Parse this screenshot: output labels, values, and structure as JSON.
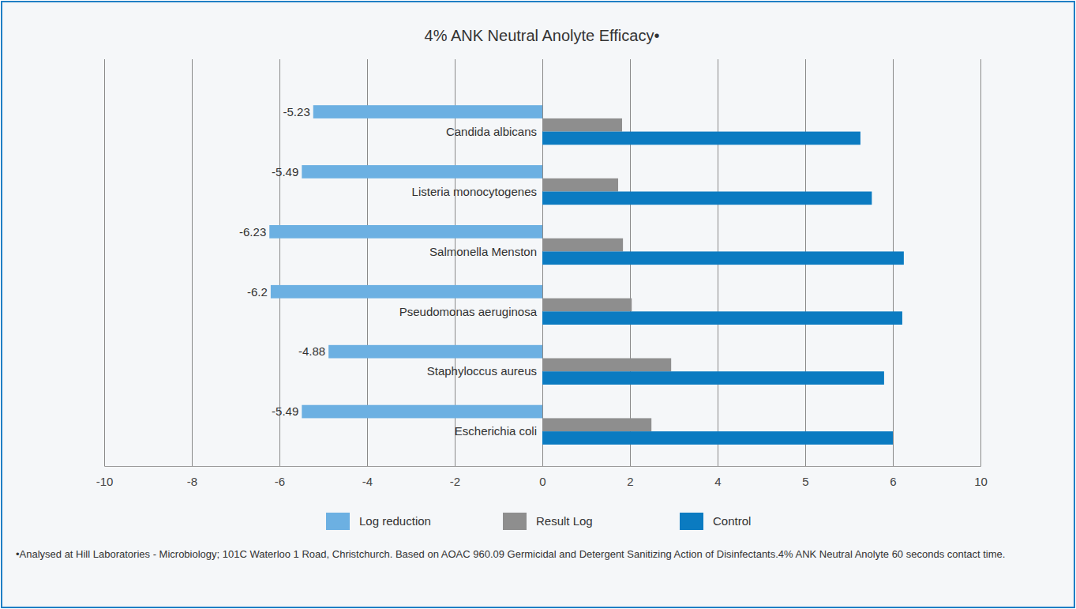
{
  "chart_data": {
    "type": "bar",
    "orientation": "horizontal",
    "title": "4% ANK Neutral Anolyte Efficacy•",
    "categories": [
      "Candida albicans",
      "Listeria monocytogenes",
      "Salmonella Menston",
      "Pseudomonas aeruginosa",
      "Staphyloccus aureus",
      "Escherichia coli"
    ],
    "series": [
      {
        "name": "Log reduction",
        "color": "#6cb0e2",
        "values": [
          -5.23,
          -5.49,
          -6.23,
          -6.2,
          -4.88,
          -5.49
        ],
        "data_labels": true
      },
      {
        "name": "Result Log",
        "color": "#8e8e8e",
        "values": [
          1.82,
          1.73,
          1.84,
          2.04,
          2.94,
          2.49
        ]
      },
      {
        "name": "Control",
        "color": "#0b7bc1",
        "values": [
          5.63,
          5.76,
          6.5,
          6.43,
          5.9,
          6.0
        ]
      }
    ],
    "xlim": [
      -10,
      10
    ],
    "xticks": [
      -10,
      -8,
      -6,
      -4,
      -2,
      0,
      2,
      4,
      5,
      6,
      10
    ],
    "grid": true,
    "legend": "bottom",
    "footnote": "•Analysed at Hill Laboratories - Microbiology; 101C Waterloo 1 Road, Christchurch. Based on AOAC 960.09 Germicidal and Detergent Sanitizing Action of Disinfectants.4% ANK Neutral Anolyte 60 seconds contact time."
  }
}
